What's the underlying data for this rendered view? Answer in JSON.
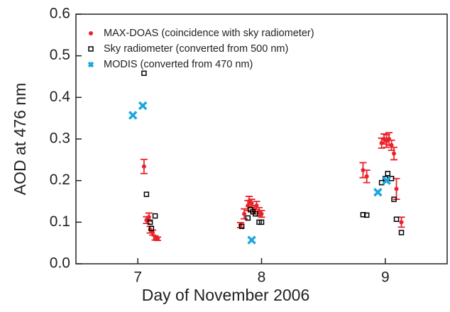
{
  "chart_data": {
    "type": "scatter",
    "xlabel": "Day of November 2006",
    "ylabel": "AOD at 476 nm",
    "xlim": [
      6.5,
      9.5
    ],
    "xticks": [
      7,
      8,
      9
    ],
    "ylim": [
      0,
      0.6
    ],
    "yticks": [
      {
        "value": 0,
        "label": "0.0"
      },
      0.1,
      0.2,
      0.3,
      0.4,
      0.5,
      0.6
    ],
    "legend": "upper left",
    "series": [
      {
        "name": "MAX-DOAS (coincidence with sky radiometer)",
        "color": "#e8232b",
        "marker": "circle",
        "x": [
          7.05,
          7.07,
          7.09,
          7.1,
          7.12,
          7.14,
          7.16,
          7.83,
          7.86,
          7.89,
          7.9,
          7.92,
          7.94,
          7.96,
          7.98,
          8.0,
          8.82,
          8.85,
          8.97,
          8.99,
          9.01,
          9.03,
          9.05,
          9.07,
          9.09,
          9.13
        ],
        "values": [
          0.234,
          0.105,
          0.112,
          0.082,
          0.075,
          0.062,
          0.06,
          0.093,
          0.12,
          0.14,
          0.15,
          0.145,
          0.13,
          0.14,
          0.125,
          0.12,
          0.225,
          0.21,
          0.29,
          0.3,
          0.295,
          0.3,
          0.285,
          0.265,
          0.18,
          0.1
        ],
        "errors": [
          0.017,
          0.008,
          0.01,
          0.008,
          0.006,
          0.005,
          0.004,
          0.006,
          0.012,
          0.012,
          0.012,
          0.01,
          0.01,
          0.01,
          0.01,
          0.008,
          0.018,
          0.015,
          0.012,
          0.012,
          0.015,
          0.015,
          0.012,
          0.015,
          0.025,
          0.012
        ]
      },
      {
        "name": "Sky radiometer (converted from 500 nm)",
        "color": "#000000",
        "marker": "square",
        "x": [
          7.05,
          7.07,
          7.1,
          7.11,
          7.14,
          7.84,
          7.89,
          7.91,
          7.93,
          7.95,
          7.98,
          8.0,
          8.82,
          8.85,
          8.97,
          9.0,
          9.02,
          9.05,
          9.07,
          9.09,
          9.13
        ],
        "values": [
          0.458,
          0.167,
          0.1,
          0.085,
          0.115,
          0.09,
          0.11,
          0.13,
          0.125,
          0.12,
          0.1,
          0.1,
          0.118,
          0.117,
          0.195,
          0.205,
          0.217,
          0.205,
          0.155,
          0.107,
          0.075
        ]
      },
      {
        "name": "MODIS (converted from 470 nm)",
        "color": "#1ba6e0",
        "marker": "x",
        "x": [
          6.96,
          7.04,
          7.92,
          8.94,
          9.01
        ],
        "values": [
          0.357,
          0.38,
          0.057,
          0.172,
          0.2
        ]
      }
    ]
  }
}
